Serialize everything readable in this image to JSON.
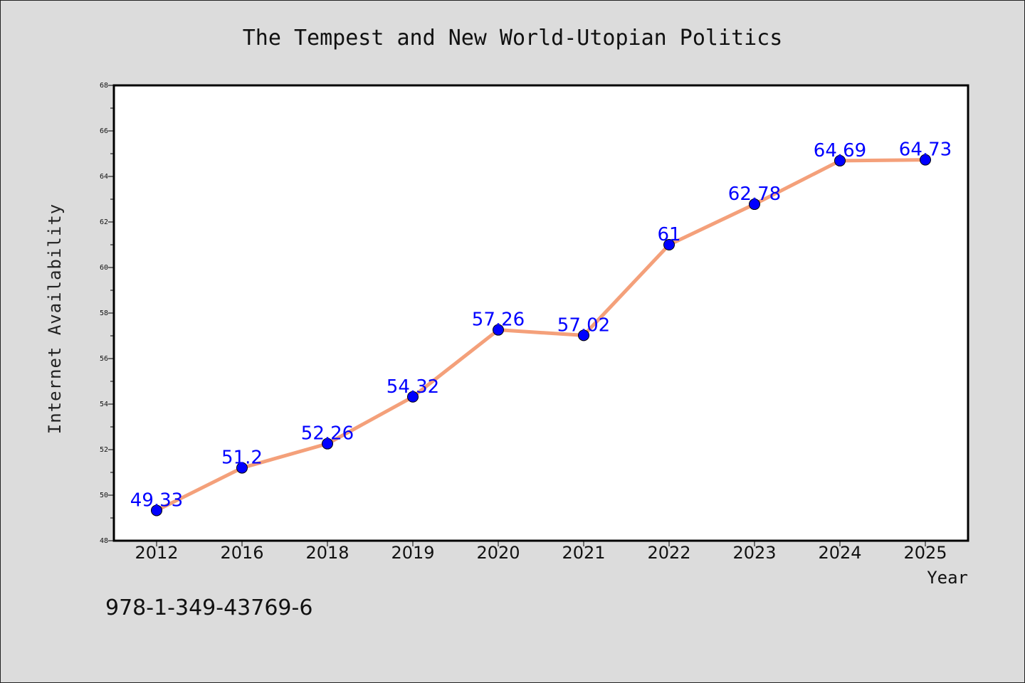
{
  "chart_data": {
    "type": "line",
    "title": "The Tempest and New World-Utopian Politics",
    "xlabel": "Year",
    "ylabel": "Internet Availability",
    "categories": [
      "2012",
      "2016",
      "2018",
      "2019",
      "2020",
      "2021",
      "2022",
      "2023",
      "2024",
      "2025"
    ],
    "values": [
      49.33,
      51.2,
      52.26,
      54.32,
      57.26,
      57.02,
      61,
      62.78,
      64.69,
      64.73
    ],
    "value_labels": [
      "49.33",
      "51.2",
      "52.26",
      "54.32",
      "57.26",
      "57.02",
      "61",
      "62.78",
      "64.69",
      "64.73"
    ],
    "ylim": [
      48,
      68
    ],
    "yticks": [
      "48",
      "50",
      "52",
      "54",
      "56",
      "58",
      "60",
      "62",
      "64",
      "66",
      "68"
    ],
    "grid": false,
    "line_color": "#f4a07a",
    "marker_color": "#0000ff",
    "label_color": "#0000ff"
  },
  "footnote": "978-1-349-43769-6"
}
